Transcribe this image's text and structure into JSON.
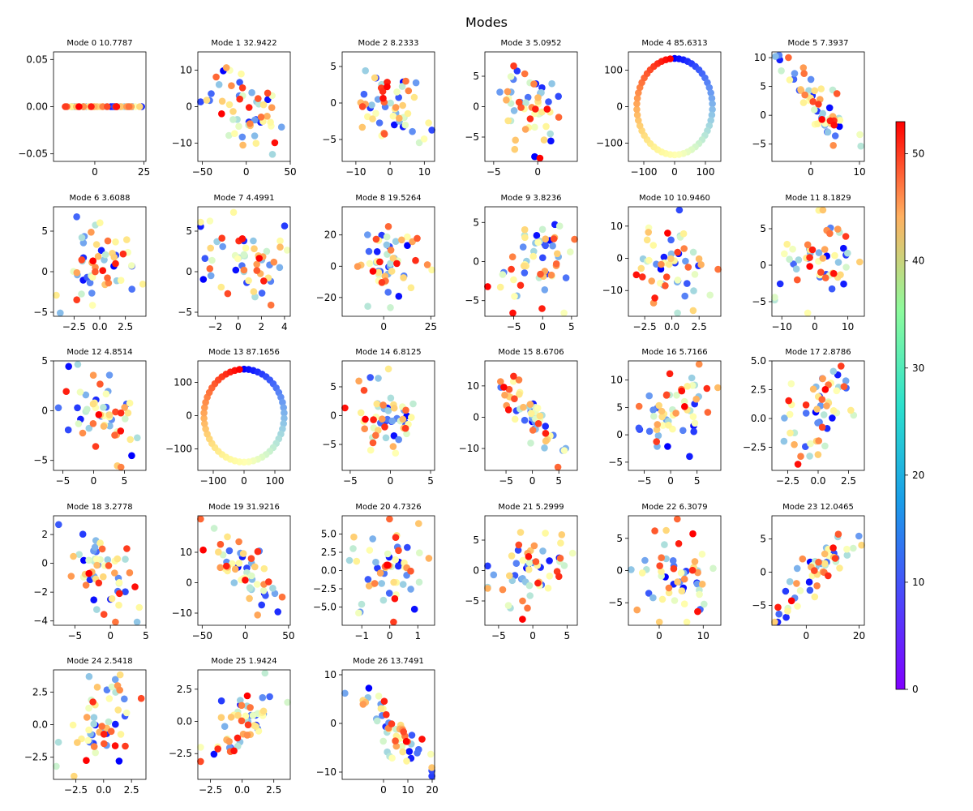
{
  "figure": {
    "title": "Modes"
  },
  "colorbar": {
    "min": 0,
    "max": 53,
    "ticks": [
      "0",
      "10",
      "20",
      "30",
      "40",
      "50"
    ],
    "colormap": "rainbow"
  },
  "chart_data": [
    {
      "title": "Mode 0 10.7787",
      "type": "scatter",
      "xlim": [
        -21,
        26
      ],
      "ylim": [
        -0.058,
        0.058
      ],
      "xticks": [
        0,
        25
      ],
      "xticklabels": [
        "0",
        "25"
      ],
      "yticks": [
        -0.05,
        0,
        0.05
      ],
      "yticklabels": [
        "−0.05",
        "0.00",
        "0.05"
      ],
      "pattern": "line"
    },
    {
      "title": "Mode 1 32.9422",
      "type": "scatter",
      "xlim": [
        -55,
        50
      ],
      "ylim": [
        -15,
        15
      ],
      "xticks": [
        -50,
        0,
        50
      ],
      "xticklabels": [
        "−50",
        "0",
        "50"
      ],
      "yticks": [
        -10,
        0,
        10
      ],
      "yticklabels": [
        "−10",
        "0",
        "10"
      ],
      "pattern": "scatter",
      "corr": -0.5
    },
    {
      "title": "Mode 2 8.2333",
      "type": "scatter",
      "xlim": [
        -14,
        13
      ],
      "ylim": [
        -8,
        7
      ],
      "xticks": [
        -10,
        0,
        10
      ],
      "xticklabels": [
        "−10",
        "0",
        "10"
      ],
      "yticks": [
        -5,
        0,
        5
      ],
      "yticklabels": [
        "−5",
        "0",
        "5"
      ],
      "pattern": "scatter",
      "corr": -0.5
    },
    {
      "title": "Mode 3 5.0952",
      "type": "scatter",
      "xlim": [
        -6,
        4.5
      ],
      "ylim": [
        -9,
        9
      ],
      "xticks": [
        -5,
        0
      ],
      "xticklabels": [
        "−5",
        "0"
      ],
      "yticks": [
        -5,
        0,
        5
      ],
      "yticklabels": [
        "−5",
        "0",
        "5"
      ],
      "pattern": "scatter",
      "corr": -0.2
    },
    {
      "title": "Mode 4 85.6313",
      "type": "scatter",
      "xlim": [
        -150,
        150
      ],
      "ylim": [
        -150,
        150
      ],
      "xticks": [
        -100,
        0,
        100
      ],
      "xticklabels": [
        "−100",
        "0",
        "100"
      ],
      "yticks": [
        -100,
        0,
        100
      ],
      "yticklabels": [
        "−100",
        "0",
        "100"
      ],
      "pattern": "ring",
      "radius": 132
    },
    {
      "title": "Mode 5 7.3937",
      "type": "scatter",
      "xlim": [
        -8,
        11
      ],
      "ylim": [
        -8,
        11
      ],
      "xticks": [
        0,
        10
      ],
      "xticklabels": [
        "0",
        "10"
      ],
      "yticks": [
        -5,
        0,
        5,
        10
      ],
      "yticklabels": [
        "−5",
        "0",
        "5",
        "10"
      ],
      "pattern": "scatter",
      "corr": -0.85
    },
    {
      "title": "Mode 6 3.6088",
      "type": "scatter",
      "xlim": [
        -4.5,
        4.5
      ],
      "ylim": [
        -5.5,
        8
      ],
      "xticks": [
        -2.5,
        0,
        2.5
      ],
      "xticklabels": [
        "−2.5",
        "0.0",
        "2.5"
      ],
      "yticks": [
        -5,
        0,
        5
      ],
      "yticklabels": [
        "−5",
        "0",
        "5"
      ],
      "pattern": "scatter",
      "corr": 0
    },
    {
      "title": "Mode 7 4.4991",
      "type": "scatter",
      "xlim": [
        -3.5,
        4.5
      ],
      "ylim": [
        -5.5,
        8
      ],
      "xticks": [
        -2,
        0,
        2,
        4
      ],
      "xticklabels": [
        "−2",
        "0",
        "2",
        "4"
      ],
      "yticks": [
        -5,
        0,
        5
      ],
      "yticklabels": [
        "−5",
        "0",
        "5"
      ],
      "pattern": "scatter",
      "corr": 0
    },
    {
      "title": "Mode 8 19.5264",
      "type": "scatter",
      "xlim": [
        -22,
        27
      ],
      "ylim": [
        -32,
        38
      ],
      "xticks": [
        0,
        25
      ],
      "xticklabels": [
        "0",
        "25"
      ],
      "yticks": [
        -20,
        0,
        20
      ],
      "yticklabels": [
        "−20",
        "0",
        "20"
      ],
      "pattern": "scatter",
      "corr": 0
    },
    {
      "title": "Mode 9 3.8236",
      "type": "scatter",
      "xlim": [
        -10,
        6
      ],
      "ylim": [
        -7,
        7
      ],
      "xticks": [
        -5,
        0,
        5
      ],
      "xticklabels": [
        "−5",
        "0",
        "5"
      ],
      "yticks": [
        -5,
        0,
        5
      ],
      "yticklabels": [
        "−5",
        "0",
        "5"
      ],
      "pattern": "scatter",
      "corr": 0.1
    },
    {
      "title": "Mode 10 10.9460",
      "type": "scatter",
      "xlim": [
        -4,
        4.5
      ],
      "ylim": [
        -18,
        16
      ],
      "xticks": [
        -2.5,
        0,
        2.5
      ],
      "xticklabels": [
        "−2.5",
        "0.0",
        "2.5"
      ],
      "yticks": [
        -10,
        0,
        10
      ],
      "yticklabels": [
        "−10",
        "0",
        "10"
      ],
      "pattern": "scatter",
      "corr": 0
    },
    {
      "title": "Mode 11 8.1829",
      "type": "scatter",
      "xlim": [
        -13,
        15
      ],
      "ylim": [
        -7,
        8
      ],
      "xticks": [
        -10,
        0,
        10
      ],
      "xticklabels": [
        "−10",
        "0",
        "10"
      ],
      "yticks": [
        -5,
        0,
        5
      ],
      "yticklabels": [
        "−5",
        "0",
        "5"
      ],
      "pattern": "scatter",
      "corr": 0.2
    },
    {
      "title": "Mode 12 4.8514",
      "type": "scatter",
      "xlim": [
        -6.5,
        8.5
      ],
      "ylim": [
        -6,
        5
      ],
      "xticks": [
        -5,
        0,
        5
      ],
      "xticklabels": [
        "−5",
        "0",
        "5"
      ],
      "yticks": [
        -5,
        0,
        5
      ],
      "yticklabels": [
        "−5",
        "0",
        "5"
      ],
      "pattern": "scatter",
      "corr": -0.45
    },
    {
      "title": "Mode 13 87.1656",
      "type": "scatter",
      "xlim": [
        -150,
        150
      ],
      "ylim": [
        -165,
        165
      ],
      "xticks": [
        -100,
        0,
        100
      ],
      "xticklabels": [
        "−100",
        "0",
        "100"
      ],
      "yticks": [
        -100,
        0,
        100
      ],
      "yticklabels": [
        "−100",
        "0",
        "100"
      ],
      "pattern": "ring",
      "radius": 140
    },
    {
      "title": "Mode 14 6.8125",
      "type": "scatter",
      "xlim": [
        -6,
        5.5
      ],
      "ylim": [
        -9.5,
        9.5
      ],
      "xticks": [
        -5,
        0,
        5
      ],
      "xticklabels": [
        "−5",
        "0",
        "5"
      ],
      "yticks": [
        -5,
        0,
        5
      ],
      "yticklabels": [
        "−5",
        "0",
        "5"
      ],
      "pattern": "scatter",
      "corr": 0
    },
    {
      "title": "Mode 15 8.6706",
      "type": "scatter",
      "xlim": [
        -9,
        8.5
      ],
      "ylim": [
        -17,
        18
      ],
      "xticks": [
        -5,
        0,
        5
      ],
      "xticklabels": [
        "−5",
        "0",
        "5"
      ],
      "yticks": [
        -10,
        0,
        10
      ],
      "yticklabels": [
        "−10",
        "0",
        "10"
      ],
      "pattern": "scatter",
      "corr": -0.9
    },
    {
      "title": "Mode 16 5.7166",
      "type": "scatter",
      "xlim": [
        -8,
        9.5
      ],
      "ylim": [
        -6.5,
        13.5
      ],
      "xticks": [
        -5,
        0,
        5
      ],
      "xticklabels": [
        "−5",
        "0",
        "5"
      ],
      "yticks": [
        -5,
        0,
        5,
        10
      ],
      "yticklabels": [
        "−5",
        "0",
        "5",
        "10"
      ],
      "pattern": "scatter",
      "corr": 0.5
    },
    {
      "title": "Mode 17 2.8786",
      "type": "scatter",
      "xlim": [
        -3.8,
        3.8
      ],
      "ylim": [
        -4.5,
        5
      ],
      "xticks": [
        -2.5,
        0,
        2.5
      ],
      "xticklabels": [
        "−2.5",
        "0.0",
        "2.5"
      ],
      "yticks": [
        -2.5,
        0,
        2.5,
        5
      ],
      "yticklabels": [
        "−2.5",
        "0.0",
        "2.5",
        "5.0"
      ],
      "pattern": "scatter",
      "corr": 0.4
    },
    {
      "title": "Mode 18 3.2778",
      "type": "scatter",
      "xlim": [
        -8,
        5
      ],
      "ylim": [
        -4.3,
        3.3
      ],
      "xticks": [
        -5,
        0,
        5
      ],
      "xticklabels": [
        "−5",
        "0",
        "5"
      ],
      "yticks": [
        -4,
        -2,
        0,
        2
      ],
      "yticklabels": [
        "−4",
        "−2",
        "0",
        "2"
      ],
      "pattern": "scatter",
      "corr": -0.4
    },
    {
      "title": "Mode 19 31.9216",
      "type": "scatter",
      "xlim": [
        -55,
        52
      ],
      "ylim": [
        -14,
        22
      ],
      "xticks": [
        -50,
        0,
        50
      ],
      "xticklabels": [
        "−50",
        "0",
        "50"
      ],
      "yticks": [
        -10,
        0,
        10
      ],
      "yticklabels": [
        "−10",
        "0",
        "10"
      ],
      "pattern": "scatter",
      "corr": -0.75
    },
    {
      "title": "Mode 20 4.7326",
      "type": "scatter",
      "xlim": [
        -1.7,
        1.6
      ],
      "ylim": [
        -7.5,
        7.5
      ],
      "xticks": [
        -1,
        0,
        1
      ],
      "xticklabels": [
        "−1",
        "0",
        "1"
      ],
      "yticks": [
        -5,
        -2.5,
        0,
        2.5,
        5
      ],
      "yticklabels": [
        "−5.0",
        "−2.5",
        "0.0",
        "2.5",
        "5.0"
      ],
      "pattern": "scatter",
      "corr": 0
    },
    {
      "title": "Mode 21 5.2999",
      "type": "scatter",
      "xlim": [
        -7,
        6.5
      ],
      "ylim": [
        -9,
        9
      ],
      "xticks": [
        -5,
        0,
        5
      ],
      "xticklabels": [
        "−5",
        "0",
        "5"
      ],
      "yticks": [
        -5,
        0,
        5
      ],
      "yticklabels": [
        "−5",
        "0",
        "5"
      ],
      "pattern": "scatter",
      "corr": 0
    },
    {
      "title": "Mode 22 6.3079",
      "type": "scatter",
      "xlim": [
        -7,
        14
      ],
      "ylim": [
        -8.5,
        8.5
      ],
      "xticks": [
        0,
        10
      ],
      "xticklabels": [
        "0",
        "10"
      ],
      "yticks": [
        -5,
        0,
        5
      ],
      "yticklabels": [
        "−5",
        "0",
        "5"
      ],
      "pattern": "scatter",
      "corr": -0.1
    },
    {
      "title": "Mode 23 12.0465",
      "type": "scatter",
      "xlim": [
        -13,
        22
      ],
      "ylim": [
        -8,
        8.5
      ],
      "xticks": [
        0,
        20
      ],
      "xticklabels": [
        "0",
        "20"
      ],
      "yticks": [
        -5,
        0,
        5
      ],
      "yticklabels": [
        "−5",
        "0",
        "5"
      ],
      "pattern": "scatter",
      "corr": 0.8
    },
    {
      "title": "Mode 24 2.5418",
      "type": "scatter",
      "xlim": [
        -4.5,
        3.8
      ],
      "ylim": [
        -4.2,
        4.2
      ],
      "xticks": [
        -2.5,
        0,
        2.5
      ],
      "xticklabels": [
        "−2.5",
        "0.0",
        "2.5"
      ],
      "yticks": [
        -2.5,
        0,
        2.5
      ],
      "yticklabels": [
        "−2.5",
        "0.0",
        "2.5"
      ],
      "pattern": "scatter",
      "corr": 0.45
    },
    {
      "title": "Mode 25 1.9424",
      "type": "scatter",
      "xlim": [
        -3.5,
        3.8
      ],
      "ylim": [
        -4.5,
        4
      ],
      "xticks": [
        -2.5,
        0,
        2.5
      ],
      "xticklabels": [
        "−2.5",
        "0.0",
        "2.5"
      ],
      "yticks": [
        -2.5,
        0,
        2.5
      ],
      "yticklabels": [
        "−2.5",
        "0.0",
        "2.5"
      ],
      "pattern": "scatter",
      "corr": 0.7
    },
    {
      "title": "Mode 26 13.7491",
      "type": "scatter",
      "xlim": [
        -17,
        21
      ],
      "ylim": [
        -11.5,
        11
      ],
      "xticks": [
        0,
        10,
        20
      ],
      "xticklabels": [
        "0",
        "10",
        "20"
      ],
      "yticks": [
        -10,
        0,
        10
      ],
      "yticklabels": [
        "−10",
        "0",
        "10"
      ],
      "pattern": "scatter",
      "corr": -0.85
    }
  ]
}
